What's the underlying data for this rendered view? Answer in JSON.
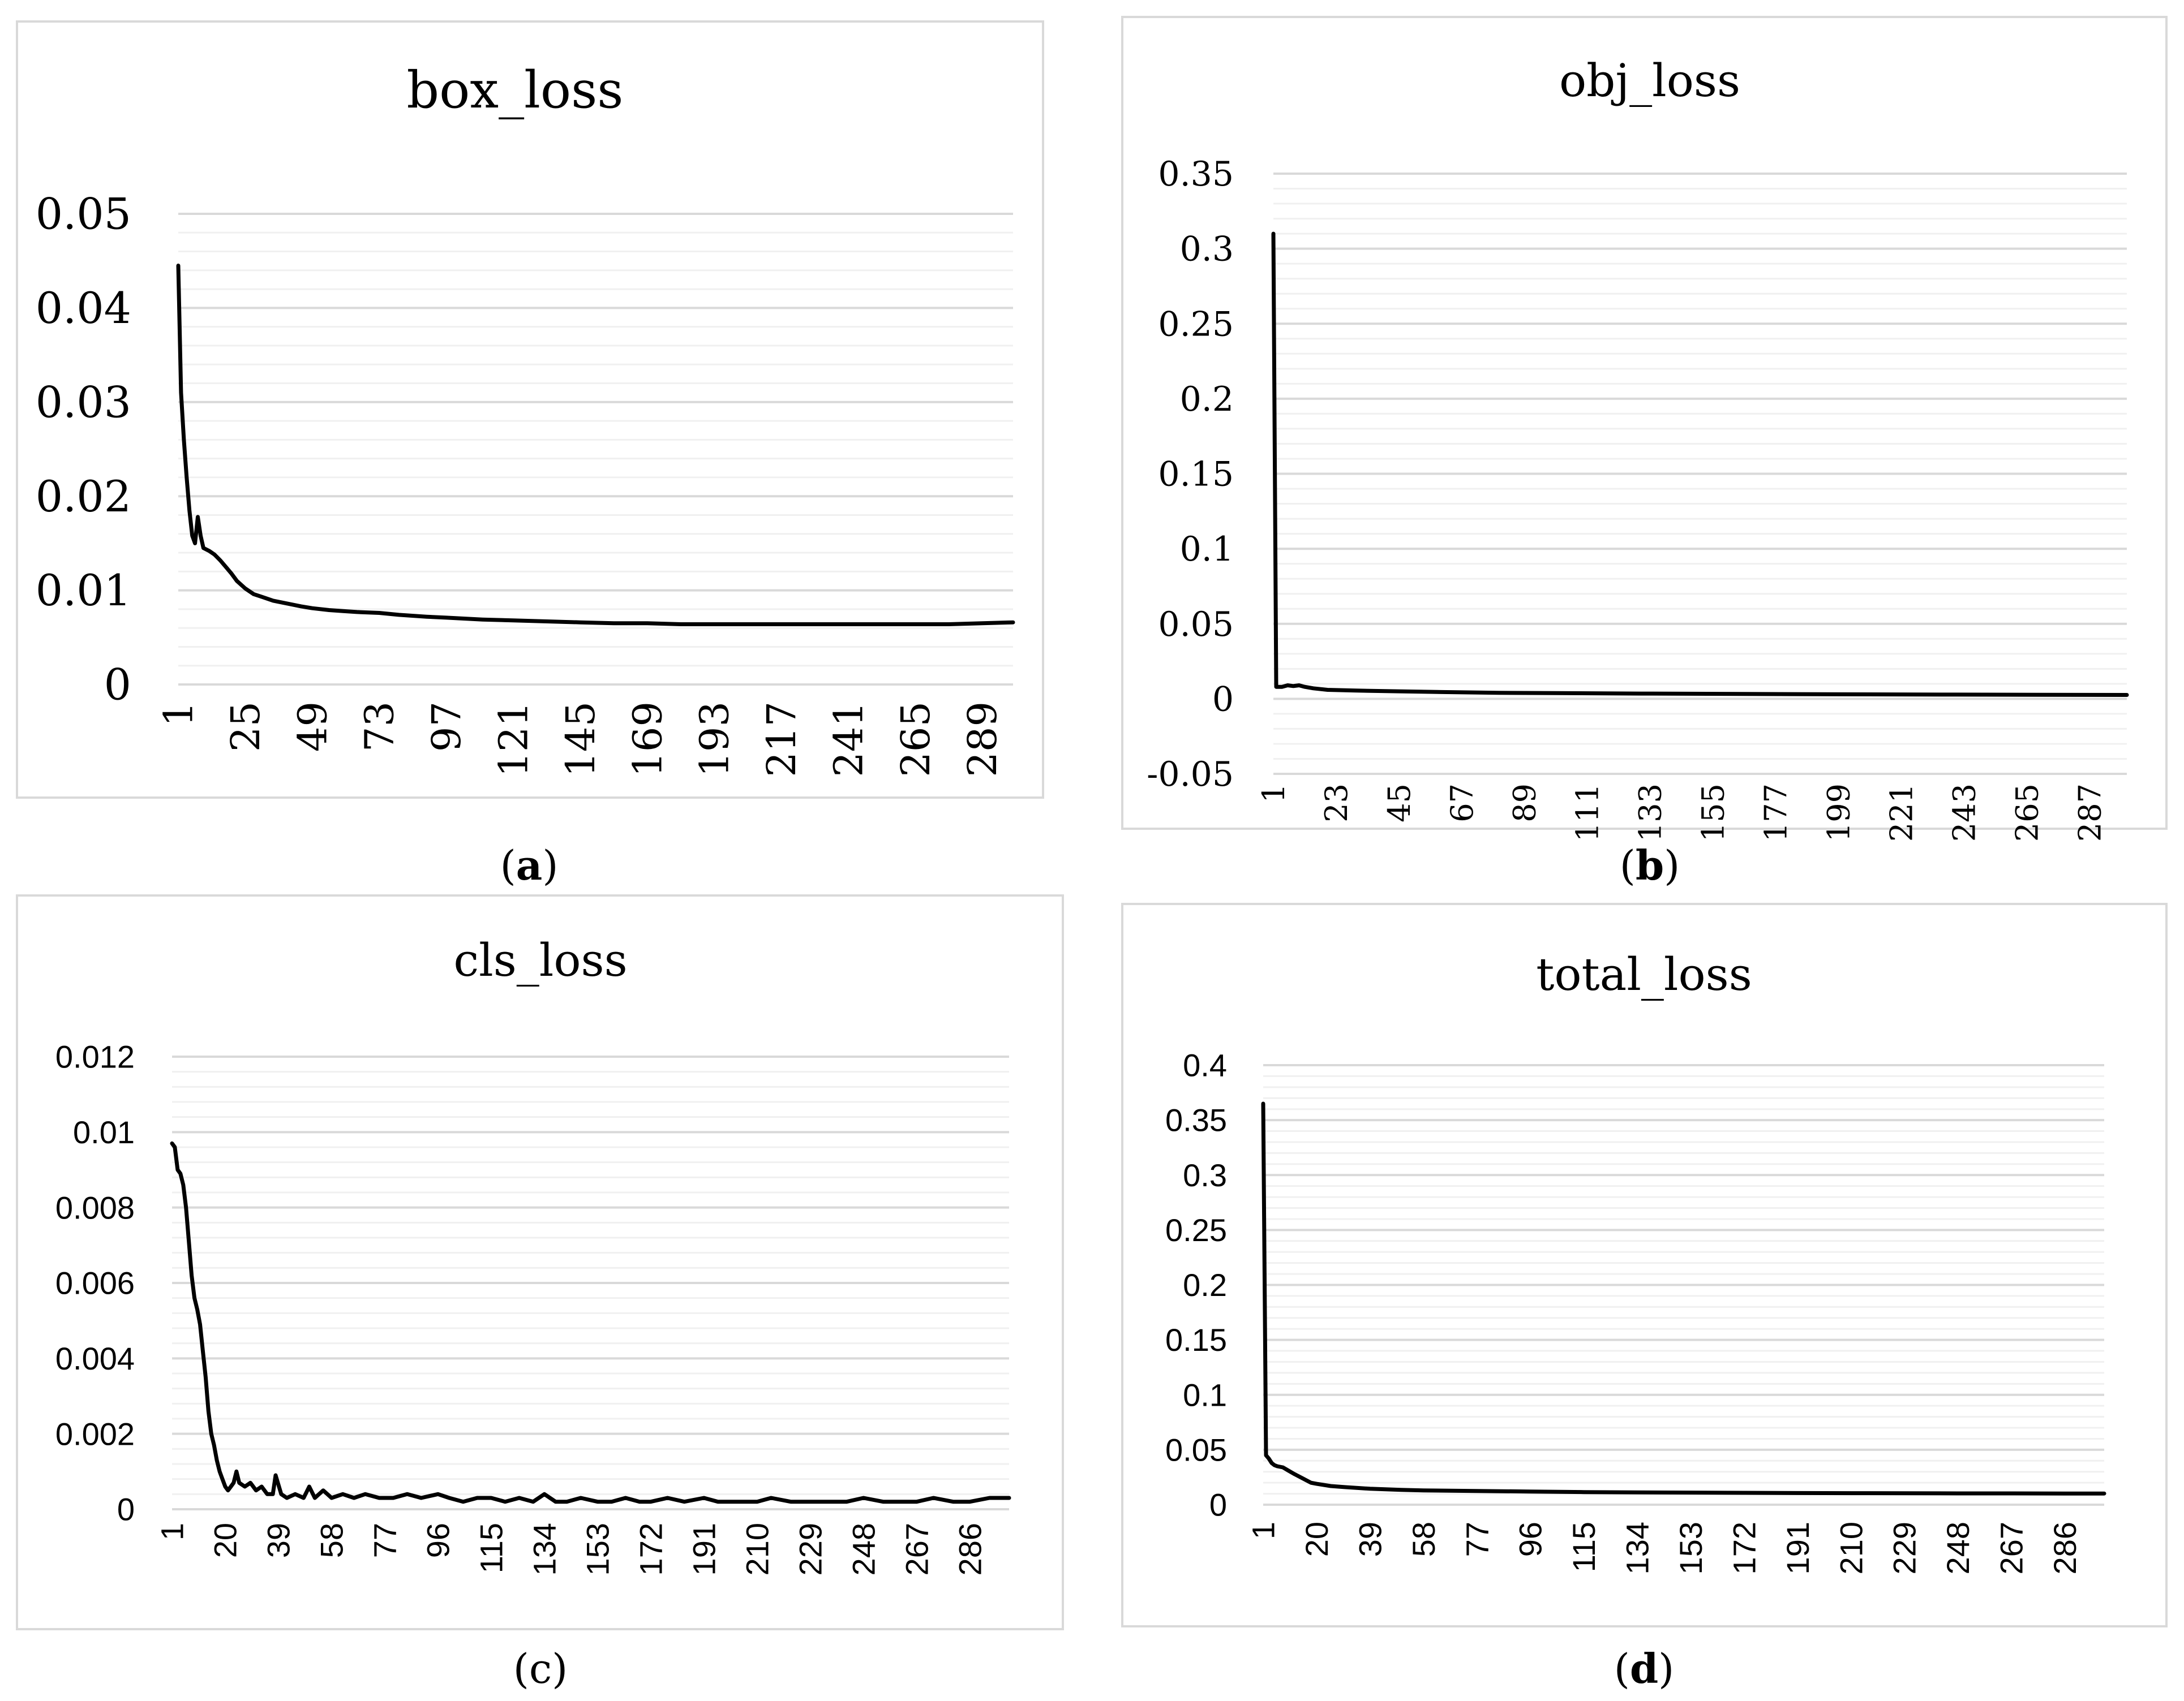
{
  "captions": [
    {
      "pre": "(",
      "letter": "a",
      "post": ")",
      "bold": true
    },
    {
      "pre": "(",
      "letter": "b",
      "post": ")",
      "bold": true
    },
    {
      "pre": "(",
      "letter": "c",
      "post": ")",
      "bold": false
    },
    {
      "pre": "(",
      "letter": "d",
      "post": ")",
      "bold": true
    }
  ],
  "chart_data": [
    {
      "type": "line",
      "title": "box_loss",
      "xlabel": "",
      "ylabel": "",
      "ylim": [
        0,
        0.05
      ],
      "y_ticks": [
        "0",
        "0.01",
        "0.02",
        "0.03",
        "0.04",
        "0.05"
      ],
      "y_tick_values": [
        0,
        0.01,
        0.02,
        0.03,
        0.04,
        0.05
      ],
      "x_ticks": [
        "1",
        "25",
        "49",
        "73",
        "97",
        "121",
        "145",
        "169",
        "193",
        "217",
        "241",
        "265",
        "289"
      ],
      "x_range": [
        1,
        300
      ],
      "grid": "horizontal, major and minor",
      "legend": "none",
      "series_color": "#000000",
      "points": [
        [
          1,
          0.0445
        ],
        [
          2,
          0.031
        ],
        [
          3,
          0.026
        ],
        [
          4,
          0.022
        ],
        [
          5,
          0.0185
        ],
        [
          6,
          0.0158
        ],
        [
          7,
          0.015
        ],
        [
          8,
          0.0178
        ],
        [
          9,
          0.0158
        ],
        [
          10,
          0.0145
        ],
        [
          12,
          0.0142
        ],
        [
          14,
          0.0138
        ],
        [
          16,
          0.0132
        ],
        [
          18,
          0.0125
        ],
        [
          20,
          0.0118
        ],
        [
          22,
          0.011
        ],
        [
          25,
          0.0102
        ],
        [
          28,
          0.0096
        ],
        [
          31,
          0.0093
        ],
        [
          35,
          0.0089
        ],
        [
          40,
          0.0086
        ],
        [
          45,
          0.0083
        ],
        [
          49,
          0.0081
        ],
        [
          55,
          0.0079
        ],
        [
          60,
          0.0078
        ],
        [
          65,
          0.0077
        ],
        [
          73,
          0.0076
        ],
        [
          80,
          0.0074
        ],
        [
          90,
          0.0072
        ],
        [
          97,
          0.0071
        ],
        [
          110,
          0.0069
        ],
        [
          121,
          0.0068
        ],
        [
          133,
          0.0067
        ],
        [
          145,
          0.0066
        ],
        [
          157,
          0.0065
        ],
        [
          169,
          0.0065
        ],
        [
          181,
          0.0064
        ],
        [
          193,
          0.0064
        ],
        [
          205,
          0.0064
        ],
        [
          217,
          0.0064
        ],
        [
          229,
          0.0064
        ],
        [
          241,
          0.0064
        ],
        [
          253,
          0.0064
        ],
        [
          265,
          0.0064
        ],
        [
          277,
          0.0064
        ],
        [
          289,
          0.0065
        ],
        [
          300,
          0.0066
        ]
      ]
    },
    {
      "type": "line",
      "title": "obj_loss",
      "xlabel": "",
      "ylabel": "",
      "ylim": [
        -0.05,
        0.35
      ],
      "y_ticks": [
        "-0.05",
        "0",
        "0.05",
        "0.1",
        "0.15",
        "0.2",
        "0.25",
        "0.3",
        "0.35"
      ],
      "y_tick_values": [
        -0.05,
        0,
        0.05,
        0.1,
        0.15,
        0.2,
        0.25,
        0.3,
        0.35
      ],
      "x_ticks": [
        "1",
        "23",
        "45",
        "67",
        "89",
        "111",
        "133",
        "155",
        "177",
        "199",
        "221",
        "243",
        "265",
        "287"
      ],
      "x_range": [
        1,
        300
      ],
      "grid": "horizontal, major and minor",
      "legend": "none",
      "series_color": "#000000",
      "points": [
        [
          1,
          0.31
        ],
        [
          2,
          0.008
        ],
        [
          4,
          0.008
        ],
        [
          6,
          0.009
        ],
        [
          8,
          0.0085
        ],
        [
          10,
          0.009
        ],
        [
          12,
          0.008
        ],
        [
          15,
          0.007
        ],
        [
          20,
          0.006
        ],
        [
          30,
          0.0055
        ],
        [
          45,
          0.005
        ],
        [
          60,
          0.0045
        ],
        [
          80,
          0.004
        ],
        [
          100,
          0.0038
        ],
        [
          130,
          0.0035
        ],
        [
          160,
          0.0033
        ],
        [
          200,
          0.003
        ],
        [
          240,
          0.0028
        ],
        [
          270,
          0.0027
        ],
        [
          300,
          0.0026
        ]
      ]
    },
    {
      "type": "line",
      "title": "cls_loss",
      "xlabel": "",
      "ylabel": "",
      "ylim": [
        0,
        0.012
      ],
      "y_ticks": [
        "0",
        "0.002",
        "0.004",
        "0.006",
        "0.008",
        "0.01",
        "0.012"
      ],
      "y_tick_values": [
        0,
        0.002,
        0.004,
        0.006,
        0.008,
        0.01,
        0.012
      ],
      "x_ticks": [
        "1",
        "20",
        "39",
        "58",
        "77",
        "96",
        "115",
        "134",
        "153",
        "172",
        "191",
        "210",
        "229",
        "248",
        "267",
        "286"
      ],
      "x_range": [
        1,
        300
      ],
      "grid": "horizontal, major and minor",
      "legend": "none",
      "series_color": "#000000",
      "points": [
        [
          1,
          0.0097
        ],
        [
          2,
          0.0096
        ],
        [
          3,
          0.009
        ],
        [
          4,
          0.0089
        ],
        [
          5,
          0.0086
        ],
        [
          6,
          0.008
        ],
        [
          7,
          0.0071
        ],
        [
          8,
          0.0062
        ],
        [
          9,
          0.0056
        ],
        [
          10,
          0.0053
        ],
        [
          11,
          0.0049
        ],
        [
          12,
          0.0042
        ],
        [
          13,
          0.0035
        ],
        [
          14,
          0.0026
        ],
        [
          15,
          0.002
        ],
        [
          16,
          0.0017
        ],
        [
          17,
          0.0013
        ],
        [
          18,
          0.001
        ],
        [
          19,
          0.0008
        ],
        [
          20,
          0.0006
        ],
        [
          21,
          0.0005
        ],
        [
          22,
          0.0006
        ],
        [
          23,
          0.0007
        ],
        [
          24,
          0.001
        ],
        [
          25,
          0.0007
        ],
        [
          27,
          0.0006
        ],
        [
          29,
          0.0007
        ],
        [
          31,
          0.0005
        ],
        [
          33,
          0.0006
        ],
        [
          35,
          0.0004
        ],
        [
          37,
          0.0004
        ],
        [
          38,
          0.0009
        ],
        [
          40,
          0.0004
        ],
        [
          42,
          0.0003
        ],
        [
          45,
          0.0004
        ],
        [
          48,
          0.0003
        ],
        [
          50,
          0.0006
        ],
        [
          52,
          0.0003
        ],
        [
          55,
          0.0005
        ],
        [
          58,
          0.0003
        ],
        [
          62,
          0.0004
        ],
        [
          66,
          0.0003
        ],
        [
          70,
          0.0004
        ],
        [
          75,
          0.0003
        ],
        [
          80,
          0.0003
        ],
        [
          85,
          0.0004
        ],
        [
          90,
          0.0003
        ],
        [
          96,
          0.0004
        ],
        [
          100,
          0.0003
        ],
        [
          105,
          0.0002
        ],
        [
          110,
          0.0003
        ],
        [
          115,
          0.0003
        ],
        [
          120,
          0.0002
        ],
        [
          125,
          0.0003
        ],
        [
          130,
          0.0002
        ],
        [
          134,
          0.0004
        ],
        [
          138,
          0.0002
        ],
        [
          142,
          0.0002
        ],
        [
          147,
          0.0003
        ],
        [
          153,
          0.0002
        ],
        [
          158,
          0.0002
        ],
        [
          163,
          0.0003
        ],
        [
          168,
          0.0002
        ],
        [
          172,
          0.0002
        ],
        [
          178,
          0.0003
        ],
        [
          184,
          0.0002
        ],
        [
          191,
          0.0003
        ],
        [
          196,
          0.0002
        ],
        [
          202,
          0.0002
        ],
        [
          210,
          0.0002
        ],
        [
          215,
          0.0003
        ],
        [
          222,
          0.0002
        ],
        [
          229,
          0.0002
        ],
        [
          236,
          0.0002
        ],
        [
          242,
          0.0002
        ],
        [
          248,
          0.0003
        ],
        [
          255,
          0.0002
        ],
        [
          260,
          0.0002
        ],
        [
          267,
          0.0002
        ],
        [
          273,
          0.0003
        ],
        [
          280,
          0.0002
        ],
        [
          286,
          0.0002
        ],
        [
          293,
          0.0003
        ],
        [
          300,
          0.0003
        ]
      ]
    },
    {
      "type": "line",
      "title": "total_loss",
      "xlabel": "",
      "ylabel": "",
      "ylim": [
        0,
        0.4
      ],
      "y_ticks": [
        "0",
        "0.05",
        "0.1",
        "0.15",
        "0.2",
        "0.25",
        "0.3",
        "0.35",
        "0.4"
      ],
      "y_tick_values": [
        0,
        0.05,
        0.1,
        0.15,
        0.2,
        0.25,
        0.3,
        0.35,
        0.4
      ],
      "x_ticks": [
        "1",
        "20",
        "39",
        "58",
        "77",
        "96",
        "115",
        "134",
        "153",
        "172",
        "191",
        "210",
        "229",
        "248",
        "267",
        "286"
      ],
      "x_range": [
        1,
        300
      ],
      "grid": "horizontal, major and minor",
      "legend": "none",
      "series_color": "#000000",
      "points": [
        [
          1,
          0.365
        ],
        [
          2,
          0.045
        ],
        [
          3,
          0.042
        ],
        [
          4,
          0.038
        ],
        [
          5,
          0.036
        ],
        [
          6,
          0.035
        ],
        [
          8,
          0.034
        ],
        [
          10,
          0.031
        ],
        [
          12,
          0.028
        ],
        [
          15,
          0.024
        ],
        [
          18,
          0.02
        ],
        [
          20,
          0.019
        ],
        [
          25,
          0.017
        ],
        [
          30,
          0.016
        ],
        [
          39,
          0.0145
        ],
        [
          50,
          0.0135
        ],
        [
          58,
          0.013
        ],
        [
          77,
          0.0125
        ],
        [
          96,
          0.012
        ],
        [
          115,
          0.0115
        ],
        [
          134,
          0.0112
        ],
        [
          153,
          0.011
        ],
        [
          172,
          0.0108
        ],
        [
          191,
          0.0106
        ],
        [
          210,
          0.0105
        ],
        [
          229,
          0.0104
        ],
        [
          248,
          0.0103
        ],
        [
          267,
          0.0103
        ],
        [
          286,
          0.0102
        ],
        [
          300,
          0.0102
        ]
      ]
    }
  ]
}
